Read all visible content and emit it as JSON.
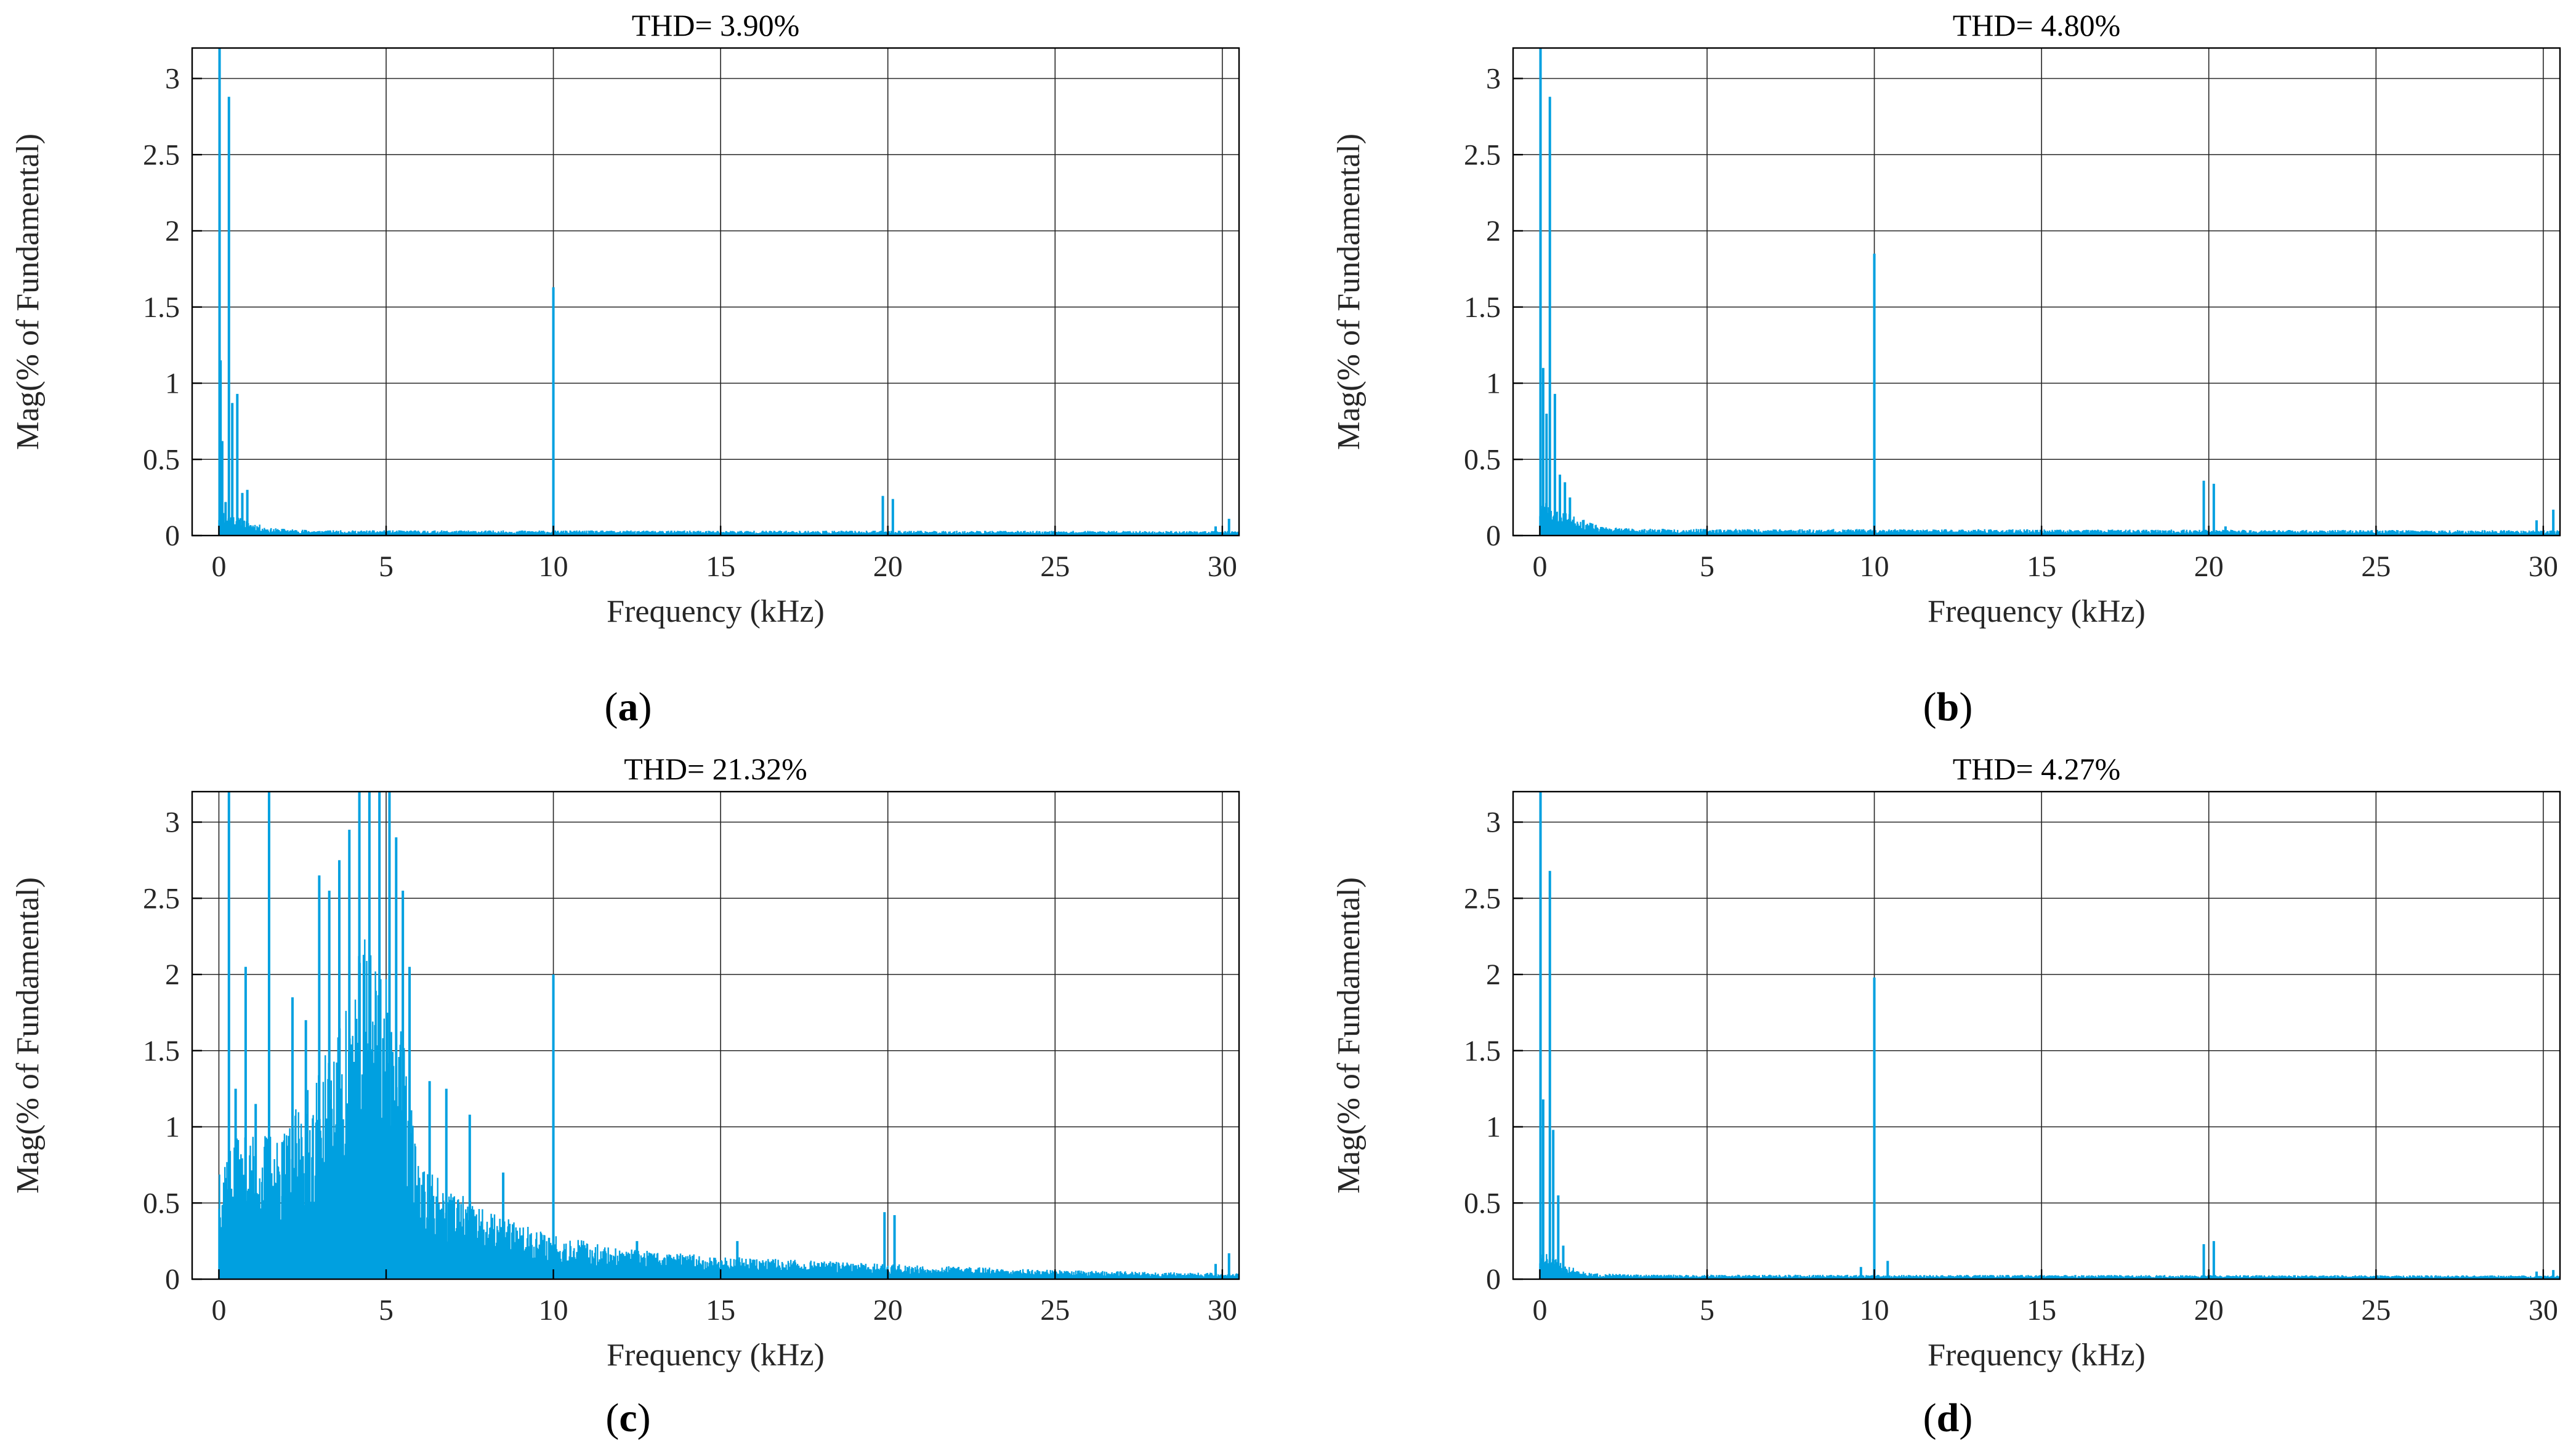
{
  "figure": {
    "panels": [
      {
        "label": "a",
        "title": "THD= 3.90%"
      },
      {
        "label": "b",
        "title": "THD= 4.80%"
      },
      {
        "label": "c",
        "title": "THD= 21.32%"
      },
      {
        "label": "d",
        "title": "THD= 4.27%"
      }
    ]
  },
  "chart_data": [
    {
      "type": "bar",
      "title": "THD= 3.90%",
      "xlabel": "Frequency (kHz)",
      "ylabel": "Mag(% of Fundamental)",
      "xlim": [
        -0.8,
        30.5
      ],
      "ylim": [
        0,
        3.2
      ],
      "xticks": [
        0,
        5,
        10,
        15,
        20,
        25,
        30
      ],
      "yticks": [
        0,
        0.5,
        1,
        1.5,
        2,
        2.5,
        3
      ],
      "ytick_labels": [
        "0",
        "0.5",
        "1",
        "1.5",
        "2",
        "2.5",
        "3"
      ],
      "grid": true,
      "color": "#00a0e0",
      "noise": {
        "levels": [
          [
            0,
            0.2
          ],
          [
            0.6,
            0.12
          ],
          [
            1.5,
            0.05
          ],
          [
            3,
            0.035
          ],
          [
            30.5,
            0.03
          ]
        ],
        "seed": 11
      },
      "peaks": [
        [
          0.02,
          3.2
        ],
        [
          0.05,
          1.15
        ],
        [
          0.1,
          0.62
        ],
        [
          0.3,
          2.88
        ],
        [
          0.4,
          0.87
        ],
        [
          0.55,
          0.93
        ],
        [
          0.7,
          0.28
        ],
        [
          0.85,
          0.3
        ],
        [
          0.2,
          0.22
        ],
        [
          10.0,
          1.63
        ],
        [
          19.85,
          0.26
        ],
        [
          20.15,
          0.24
        ],
        [
          29.8,
          0.06
        ],
        [
          30.2,
          0.11
        ]
      ]
    },
    {
      "type": "bar",
      "title": "THD= 4.80%",
      "xlabel": "Frequency (kHz)",
      "ylabel": "Mag(% of Fundamental)",
      "xlim": [
        -0.8,
        30.5
      ],
      "ylim": [
        0,
        3.2
      ],
      "xticks": [
        0,
        5,
        10,
        15,
        20,
        25,
        30
      ],
      "yticks": [
        0,
        0.5,
        1,
        1.5,
        2,
        2.5,
        3
      ],
      "ytick_labels": [
        "0",
        "0.5",
        "1",
        "1.5",
        "2",
        "2.5",
        "3"
      ],
      "grid": true,
      "color": "#00a0e0",
      "noise": {
        "levels": [
          [
            0,
            0.25
          ],
          [
            0.8,
            0.15
          ],
          [
            1.8,
            0.06
          ],
          [
            3,
            0.045
          ],
          [
            30.5,
            0.035
          ]
        ],
        "seed": 23
      },
      "peaks": [
        [
          0.02,
          3.2
        ],
        [
          0.1,
          1.1
        ],
        [
          0.2,
          0.8
        ],
        [
          0.3,
          2.88
        ],
        [
          0.45,
          0.93
        ],
        [
          0.6,
          0.4
        ],
        [
          0.75,
          0.35
        ],
        [
          0.9,
          0.25
        ],
        [
          10.0,
          1.85
        ],
        [
          19.85,
          0.36
        ],
        [
          20.15,
          0.34
        ],
        [
          20.5,
          0.06
        ],
        [
          29.8,
          0.1
        ],
        [
          30.3,
          0.17
        ]
      ]
    },
    {
      "type": "bar",
      "title": "THD= 21.32%",
      "xlabel": "Frequency (kHz)",
      "ylabel": "Mag(% of Fundamental)",
      "xlim": [
        -0.8,
        30.5
      ],
      "ylim": [
        0,
        3.2
      ],
      "xticks": [
        0,
        5,
        10,
        15,
        20,
        25,
        30
      ],
      "yticks": [
        0,
        0.5,
        1,
        1.5,
        2,
        2.5,
        3
      ],
      "ytick_labels": [
        "0",
        "0.5",
        "1",
        "1.5",
        "2",
        "2.5",
        "3"
      ],
      "grid": true,
      "color": "#00a0e0",
      "noise": {
        "levels": [
          [
            0,
            0.9
          ],
          [
            2,
            1.0
          ],
          [
            3.5,
            1.6
          ],
          [
            4.5,
            2.4
          ],
          [
            5.5,
            1.6
          ],
          [
            6,
            0.75
          ],
          [
            8,
            0.45
          ],
          [
            10,
            0.3
          ],
          [
            12,
            0.2
          ],
          [
            15,
            0.15
          ],
          [
            20,
            0.1
          ],
          [
            25,
            0.06
          ],
          [
            30.5,
            0.04
          ]
        ],
        "seed": 37
      },
      "peaks": [
        [
          0.3,
          3.2
        ],
        [
          0.5,
          1.25
        ],
        [
          0.8,
          2.05
        ],
        [
          1.1,
          1.15
        ],
        [
          1.5,
          3.2
        ],
        [
          1.9,
          0.9
        ],
        [
          2.2,
          1.85
        ],
        [
          2.6,
          1.7
        ],
        [
          3.0,
          2.65
        ],
        [
          3.3,
          2.55
        ],
        [
          3.6,
          2.75
        ],
        [
          3.9,
          2.95
        ],
        [
          4.2,
          3.2
        ],
        [
          4.5,
          3.2
        ],
        [
          4.8,
          3.2
        ],
        [
          5.1,
          3.2
        ],
        [
          5.3,
          2.9
        ],
        [
          5.5,
          2.55
        ],
        [
          5.7,
          2.05
        ],
        [
          6.3,
          1.3
        ],
        [
          6.8,
          1.25
        ],
        [
          7.5,
          1.08
        ],
        [
          8.5,
          0.7
        ],
        [
          10.0,
          2.0
        ],
        [
          12.5,
          0.25
        ],
        [
          15.5,
          0.25
        ],
        [
          19.9,
          0.44
        ],
        [
          20.2,
          0.42
        ],
        [
          29.8,
          0.1
        ],
        [
          30.2,
          0.17
        ]
      ]
    },
    {
      "type": "bar",
      "title": "THD= 4.27%",
      "xlabel": "Frequency (kHz)",
      "ylabel": "Mag(% of Fundamental)",
      "xlim": [
        -0.8,
        30.5
      ],
      "ylim": [
        0,
        3.2
      ],
      "xticks": [
        0,
        5,
        10,
        15,
        20,
        25,
        30
      ],
      "yticks": [
        0,
        0.5,
        1,
        1.5,
        2,
        2.5,
        3
      ],
      "ytick_labels": [
        "0",
        "0.5",
        "1",
        "1.5",
        "2",
        "2.5",
        "3"
      ],
      "grid": true,
      "color": "#00a0e0",
      "noise": {
        "levels": [
          [
            0,
            0.2
          ],
          [
            0.7,
            0.1
          ],
          [
            1.5,
            0.04
          ],
          [
            3,
            0.03
          ],
          [
            30.5,
            0.025
          ]
        ],
        "seed": 51
      },
      "peaks": [
        [
          0.02,
          3.2
        ],
        [
          0.1,
          1.18
        ],
        [
          0.3,
          2.68
        ],
        [
          0.4,
          0.98
        ],
        [
          0.55,
          0.55
        ],
        [
          0.7,
          0.22
        ],
        [
          9.6,
          0.08
        ],
        [
          10.0,
          1.98
        ],
        [
          10.4,
          0.12
        ],
        [
          19.85,
          0.23
        ],
        [
          20.15,
          0.25
        ],
        [
          29.8,
          0.05
        ],
        [
          30.3,
          0.06
        ]
      ]
    }
  ]
}
